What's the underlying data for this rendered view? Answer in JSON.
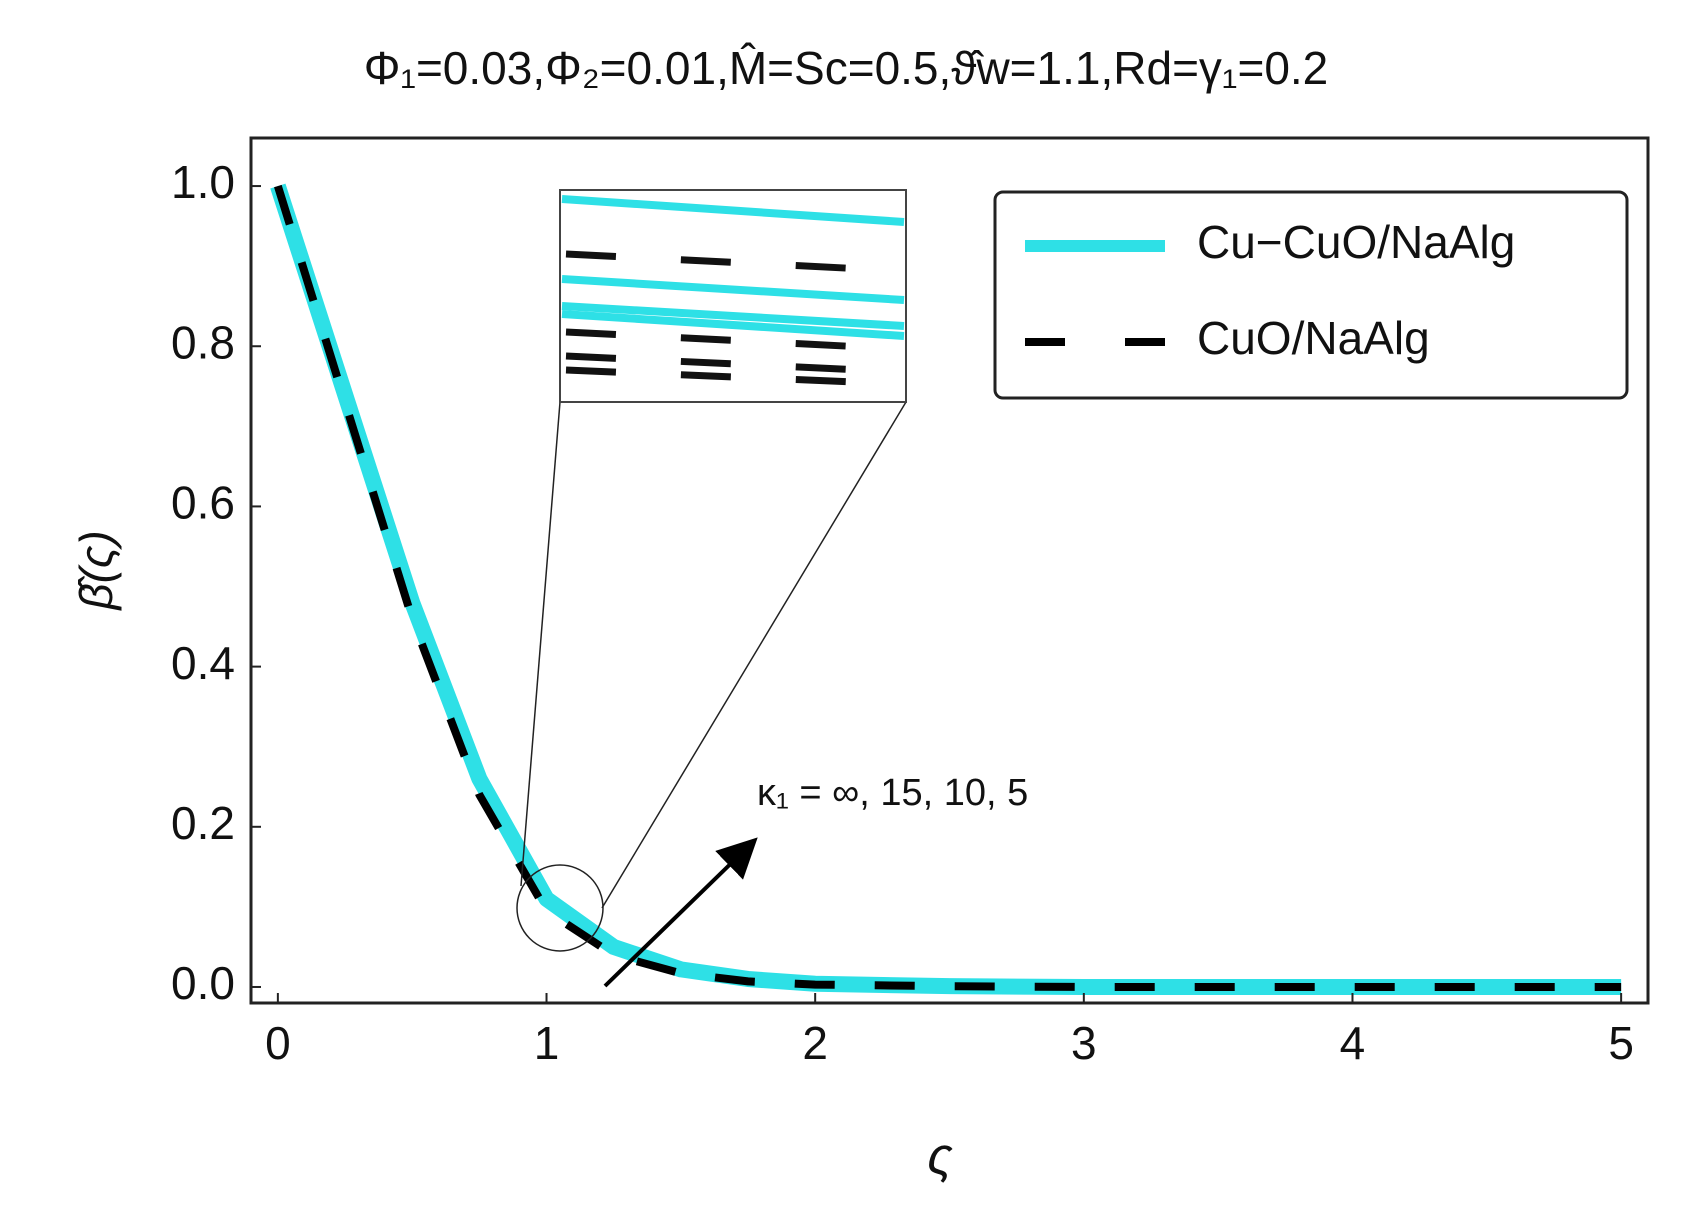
{
  "chart_data": {
    "type": "line",
    "title": "Φ₁=0.03,Φ₂=0.01,M̂=Sc=0.5,ϑ̂w=1.1,Rd=γ₁=0.2",
    "x_label": "ς",
    "y_label": "β̂(ς)",
    "annotation": "κ₁ = ∞, 15, 10, 5",
    "x": [
      0,
      0.25,
      0.5,
      0.75,
      1,
      1.25,
      1.5,
      1.75,
      2,
      2.5,
      3,
      3.5,
      4,
      4.5,
      5
    ],
    "series": [
      {
        "name": "Cu−CuO/NaAlg",
        "color": "#2ee0e6",
        "style": "solid",
        "values": [
          1,
          0.74,
          0.48,
          0.26,
          0.11,
          0.05,
          0.022,
          0.01,
          0.004,
          0.001,
          0,
          0,
          0,
          0,
          0
        ]
      },
      {
        "name": "CuO/NaAlg",
        "color": "#000000",
        "style": "dashed",
        "values": [
          1,
          0.73,
          0.46,
          0.24,
          0.095,
          0.04,
          0.017,
          0.007,
          0.003,
          0.001,
          0,
          0,
          0,
          0,
          0
        ]
      }
    ],
    "xlim": [
      -0.1,
      5.1
    ],
    "ylim": [
      -0.02,
      1.06
    ],
    "xticks": [
      0,
      1,
      2,
      3,
      4,
      5
    ],
    "yticks": [
      {
        "value": 0,
        "label": "0.0"
      },
      0.2,
      0.4,
      0.6,
      0.8,
      {
        "value": 1,
        "label": "1.0"
      }
    ],
    "legend": "upper right"
  }
}
